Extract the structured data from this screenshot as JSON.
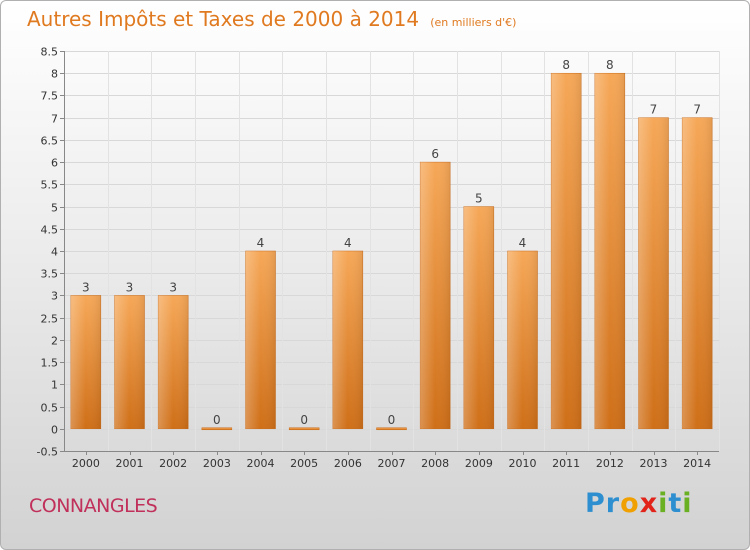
{
  "chart_data": {
    "type": "bar",
    "title": "Autres Impôts et Taxes de 2000 à 2014",
    "unit_note": "(en milliers d'€)",
    "categories": [
      "2000",
      "2001",
      "2002",
      "2003",
      "2004",
      "2005",
      "2006",
      "2007",
      "2008",
      "2009",
      "2010",
      "2011",
      "2012",
      "2013",
      "2014"
    ],
    "values": [
      3,
      3,
      3,
      0,
      4,
      0,
      4,
      0,
      6,
      5,
      4,
      8,
      8,
      7,
      7
    ],
    "value_labels": [
      "3",
      "3",
      "3",
      "0",
      "4",
      "0",
      "4",
      "0",
      "6",
      "5",
      "4",
      "8",
      "8",
      "7",
      "7"
    ],
    "ylim": [
      -0.5,
      8.5
    ],
    "y_ticks": [
      "8.5",
      "8",
      "7.5",
      "7",
      "6.5",
      "6",
      "5.5",
      "5",
      "4.5",
      "4",
      "3.5",
      "3",
      "2.5",
      "2",
      "1.5",
      "1",
      "0.5",
      "0",
      "-0.5"
    ],
    "y_tick_values": [
      8.5,
      8,
      7.5,
      7,
      6.5,
      6,
      5.5,
      5,
      4.5,
      4,
      3.5,
      3,
      2.5,
      2,
      1.5,
      1,
      0.5,
      0,
      -0.5
    ],
    "grid": true,
    "bar_color": "#f19a3e"
  },
  "footer": {
    "place_name": "CONNANGLES",
    "brand_letters": [
      {
        "ch": "P",
        "color": "#2d8fd0"
      },
      {
        "ch": "r",
        "color": "#2d8fd0"
      },
      {
        "ch": "o",
        "color": "#f0a000"
      },
      {
        "ch": "x",
        "color": "#e2231a"
      },
      {
        "ch": "i",
        "color": "#6ab023"
      },
      {
        "ch": "t",
        "color": "#2d8fd0"
      },
      {
        "ch": "i",
        "color": "#6ab023"
      }
    ]
  }
}
